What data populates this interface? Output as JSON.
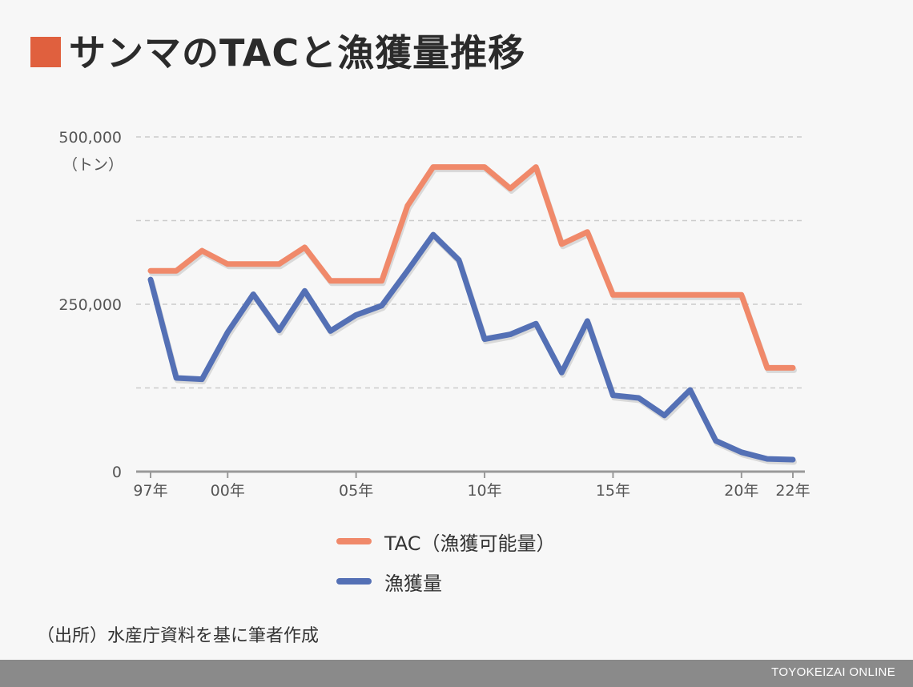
{
  "title": "サンマのTACと漁獲量推移",
  "colors": {
    "accent": "#e0603e",
    "tac": "#f0896a",
    "catch": "#5470b5",
    "grid": "#cccccc",
    "axis": "#999999"
  },
  "legend": {
    "tac": "TAC（漁獲可能量）",
    "catch": "漁獲量"
  },
  "source": "（出所）水産庁資料を基に筆者作成",
  "brand": "TOYOKEIZAI ONLINE",
  "chart_data": {
    "type": "line",
    "title": "サンマのTACと漁獲量推移",
    "y_unit": "（トン）",
    "ylim": [
      0,
      500000
    ],
    "y_ticks": [
      {
        "value": 0,
        "label": "0"
      },
      {
        "value": 125000,
        "label": ""
      },
      {
        "value": 250000,
        "label": "250,000"
      },
      {
        "value": 375000,
        "label": ""
      },
      {
        "value": 500000,
        "label": "500,000"
      }
    ],
    "grid": "horizontal dashed",
    "x": [
      1997,
      1998,
      1999,
      2000,
      2001,
      2002,
      2003,
      2004,
      2005,
      2006,
      2007,
      2008,
      2009,
      2010,
      2011,
      2012,
      2013,
      2014,
      2015,
      2016,
      2017,
      2018,
      2019,
      2020,
      2021,
      2022
    ],
    "x_ticks": [
      {
        "value": 1997,
        "label": "97年"
      },
      {
        "value": 2000,
        "label": "00年"
      },
      {
        "value": 2005,
        "label": "05年"
      },
      {
        "value": 2010,
        "label": "10年"
      },
      {
        "value": 2015,
        "label": "15年"
      },
      {
        "value": 2020,
        "label": "20年"
      },
      {
        "value": 2022,
        "label": "22年"
      }
    ],
    "series": [
      {
        "name": "TAC（漁獲可能量）",
        "values": [
          300000,
          300000,
          330000,
          310000,
          310000,
          310000,
          335000,
          285000,
          285000,
          285000,
          397000,
          455000,
          455000,
          455000,
          423000,
          455000,
          340000,
          358000,
          264000,
          264000,
          264000,
          264000,
          264000,
          264000,
          155000,
          155000
        ]
      },
      {
        "name": "漁獲量",
        "values": [
          287000,
          140000,
          138000,
          208000,
          265000,
          211000,
          270000,
          210000,
          234000,
          248000,
          300000,
          354000,
          316000,
          198000,
          205000,
          221000,
          148000,
          225000,
          114000,
          110000,
          84000,
          122000,
          46000,
          29000,
          19000,
          18000
        ]
      }
    ],
    "legend_position": "bottom"
  }
}
